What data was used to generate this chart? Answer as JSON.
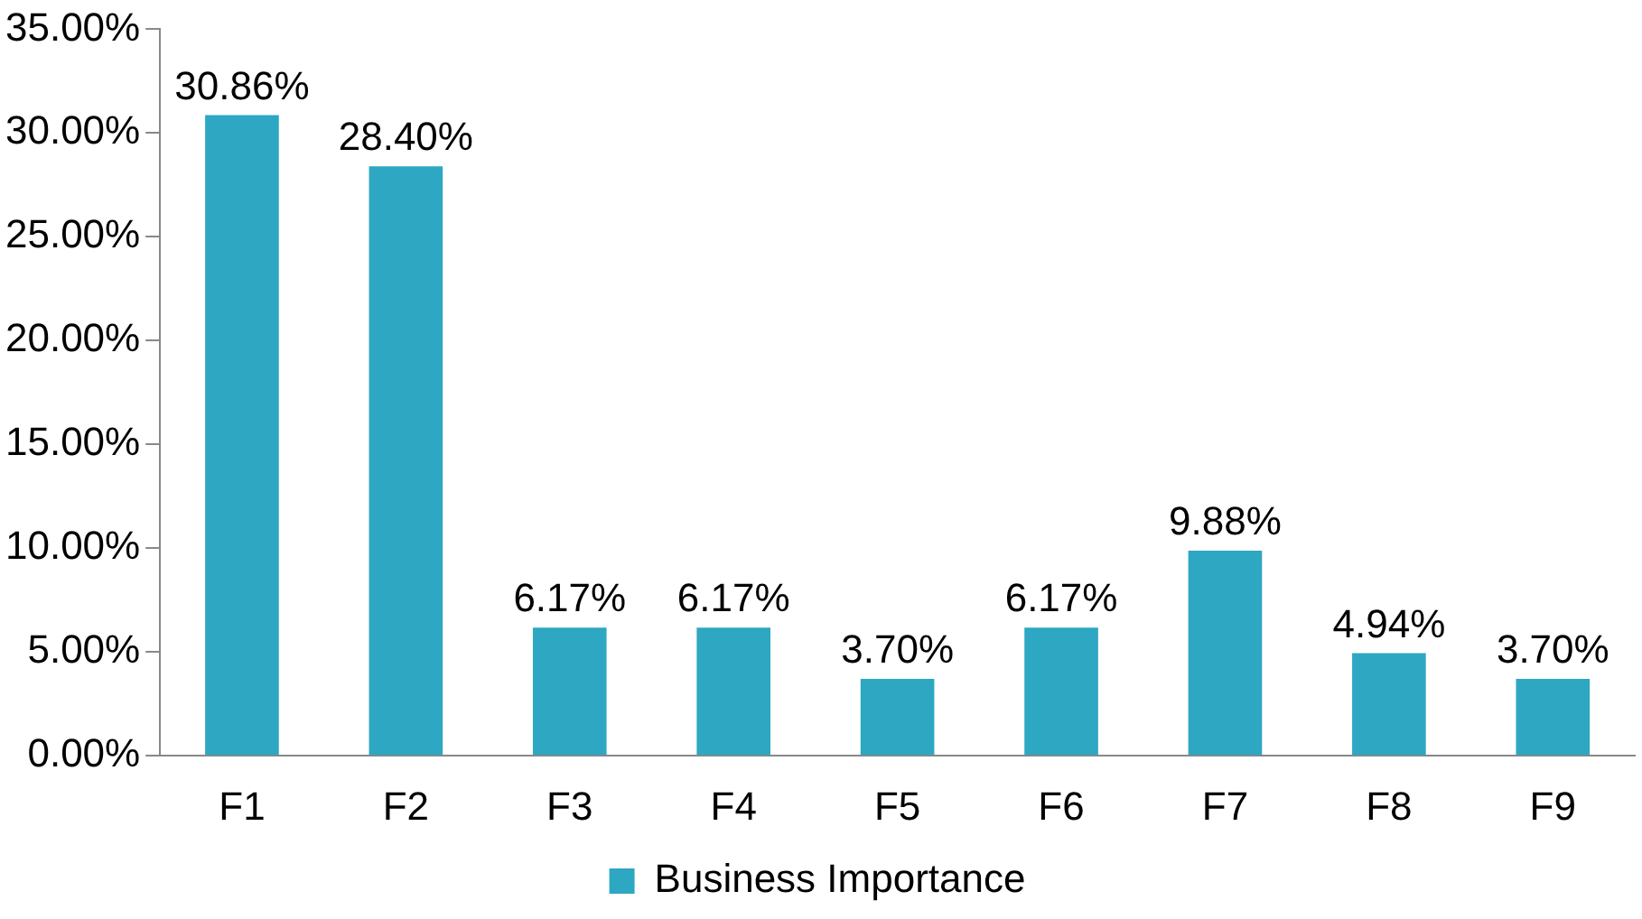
{
  "chart_data": {
    "type": "bar",
    "categories": [
      "F1",
      "F2",
      "F3",
      "F4",
      "F5",
      "F6",
      "F7",
      "F8",
      "F9"
    ],
    "series": [
      {
        "name": "Business Importance",
        "color": "#2ea7c2",
        "values": [
          30.86,
          28.4,
          6.17,
          6.17,
          3.7,
          6.17,
          9.88,
          4.94,
          3.7
        ],
        "value_labels": [
          "30.86%",
          "28.40%",
          "6.17%",
          "6.17%",
          "3.70%",
          "6.17%",
          "9.88%",
          "4.94%",
          "3.70%"
        ]
      }
    ],
    "ylim": [
      0,
      35
    ],
    "yticks": [
      {
        "value": 0,
        "label": "0.00%"
      },
      {
        "value": 5,
        "label": "5.00%"
      },
      {
        "value": 10,
        "label": "10.00%"
      },
      {
        "value": 15,
        "label": "15.00%"
      },
      {
        "value": 20,
        "label": "20.00%"
      },
      {
        "value": 25,
        "label": "25.00%"
      },
      {
        "value": 30,
        "label": "30.00%"
      },
      {
        "value": 35,
        "label": "35.00%"
      }
    ],
    "grid": false,
    "legend": "bottom"
  }
}
